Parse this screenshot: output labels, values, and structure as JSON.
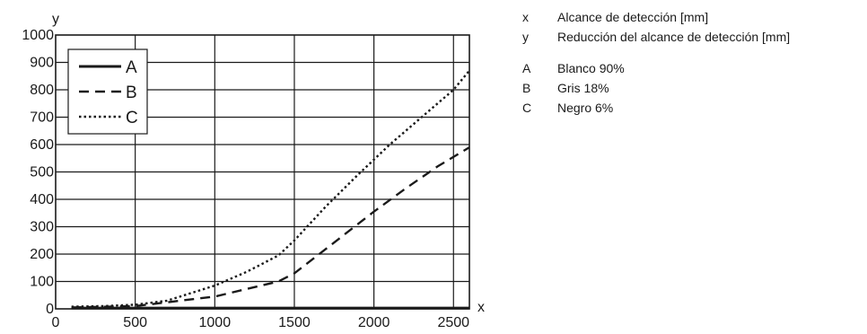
{
  "chart_data": {
    "type": "line",
    "x_axis_letter": "x",
    "y_axis_letter": "y",
    "xlim": [
      0,
      2600
    ],
    "ylim": [
      0,
      1000
    ],
    "x_ticks": [
      "0",
      "500",
      "1000",
      "1500",
      "2000",
      "2500"
    ],
    "y_ticks": [
      "0",
      "100",
      "200",
      "300",
      "400",
      "500",
      "600",
      "700",
      "800",
      "900",
      "1000"
    ],
    "grid": true,
    "legend_position": "top-left",
    "series": [
      {
        "name": "A",
        "style": "solid",
        "x": [
          100,
          2600
        ],
        "y": [
          3,
          3
        ]
      },
      {
        "name": "B",
        "style": "dashed",
        "x": [
          100,
          500,
          1000,
          1400,
          1500,
          1800,
          2000,
          2200,
          2400,
          2600
        ],
        "y": [
          5,
          10,
          45,
          100,
          130,
          265,
          355,
          440,
          520,
          590
        ]
      },
      {
        "name": "C",
        "style": "dotted",
        "x": [
          100,
          300,
          500,
          700,
          1000,
          1200,
          1400,
          1500,
          1700,
          1900,
          2100,
          2300,
          2500,
          2600
        ],
        "y": [
          8,
          10,
          15,
          30,
          85,
          135,
          195,
          250,
          375,
          490,
          600,
          700,
          800,
          870
        ]
      }
    ]
  },
  "side_legend": {
    "axes": [
      {
        "key": "x",
        "text": "Alcance de detección [mm]"
      },
      {
        "key": "y",
        "text": "Reducción del alcance de detección [mm]"
      }
    ],
    "curves": [
      {
        "key": "A",
        "text": "Blanco 90%"
      },
      {
        "key": "B",
        "text": "Gris 18%"
      },
      {
        "key": "C",
        "text": "Negro 6%"
      }
    ]
  }
}
